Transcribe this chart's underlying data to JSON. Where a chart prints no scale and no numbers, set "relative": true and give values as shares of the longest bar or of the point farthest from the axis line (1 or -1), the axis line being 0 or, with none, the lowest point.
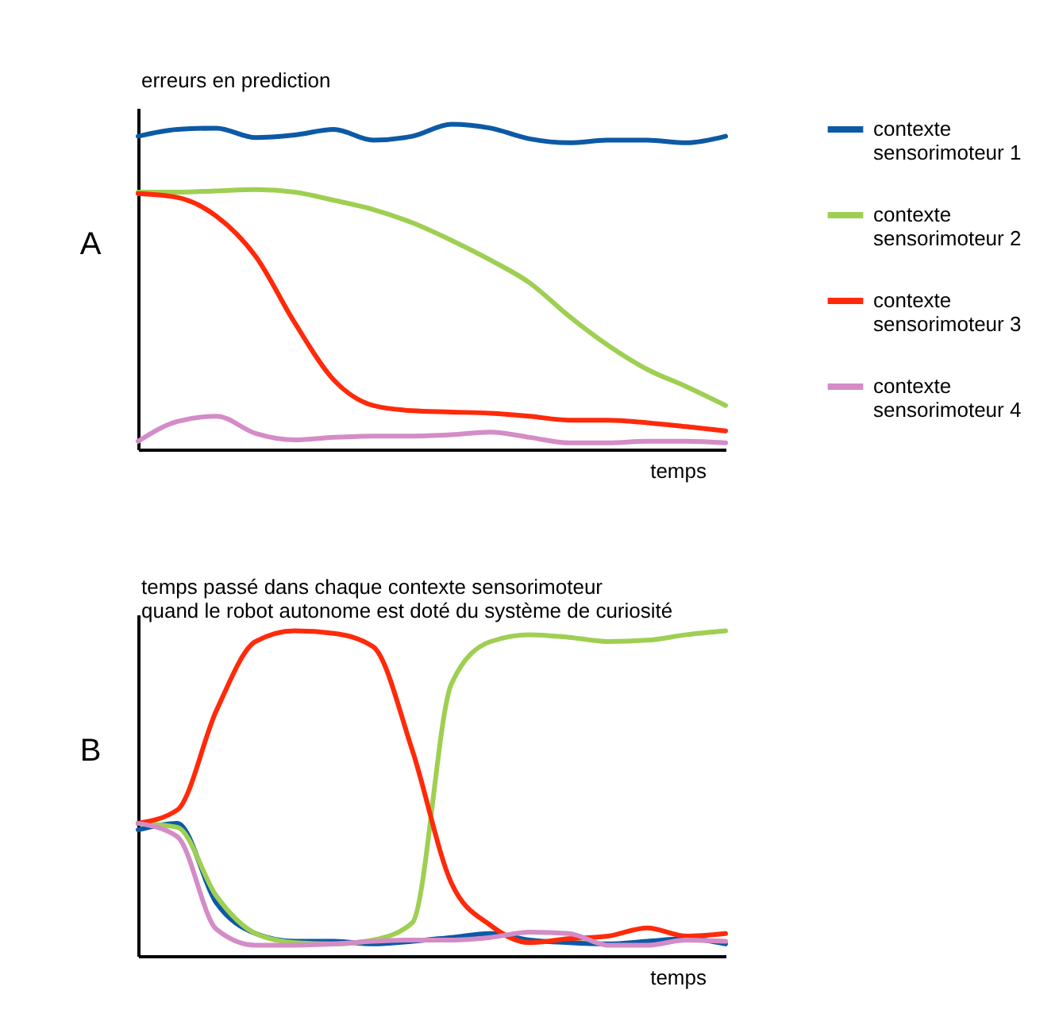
{
  "chart_data": [
    {
      "type": "line",
      "relative": true,
      "ylabel": "erreurs en prediction",
      "xlabel": "temps",
      "annotations": [
        "A"
      ],
      "legend": "right",
      "grid": false,
      "tick_labels": false,
      "categories": [
        null,
        null,
        null,
        null,
        null,
        null,
        null,
        null,
        null,
        null,
        null,
        null,
        null,
        null,
        null,
        null
      ],
      "series": [
        {
          "name": "contexte sensorimoteur 1",
          "color": "#0c5aa6",
          "values": [
            0.963,
            0.984,
            0.988,
            0.959,
            0.967,
            0.984,
            0.951,
            0.963,
            1.0,
            0.988,
            0.955,
            0.943,
            0.951,
            0.951,
            0.943,
            0.963
          ]
        },
        {
          "name": "contexte sensorimoteur 2",
          "color": "#9fcf52",
          "values": [
            0.791,
            0.791,
            0.795,
            0.799,
            0.791,
            0.766,
            0.738,
            0.697,
            0.643,
            0.582,
            0.512,
            0.41,
            0.32,
            0.246,
            0.193,
            0.135
          ]
        },
        {
          "name": "contexte sensorimoteur 3",
          "color": "#ff2a0a",
          "values": [
            0.787,
            0.775,
            0.717,
            0.594,
            0.389,
            0.213,
            0.135,
            0.119,
            0.115,
            0.111,
            0.102,
            0.09,
            0.09,
            0.082,
            0.07,
            0.057
          ]
        },
        {
          "name": "contexte sensorimoteur 4",
          "color": "#d48cc6",
          "values": [
            0.025,
            0.086,
            0.102,
            0.049,
            0.029,
            0.037,
            0.041,
            0.041,
            0.045,
            0.053,
            0.037,
            0.02,
            0.02,
            0.025,
            0.025,
            0.02
          ]
        }
      ]
    },
    {
      "type": "line",
      "relative": true,
      "ylabel": "temps passé dans chaque contexte sensorimoteur\nquand le robot autonome est doté du système de curiosité",
      "xlabel": "temps",
      "annotations": [
        "B"
      ],
      "legend": "right",
      "grid": false,
      "tick_labels": false,
      "categories": [
        null,
        null,
        null,
        null,
        null,
        null,
        null,
        null,
        null,
        null,
        null,
        null,
        null,
        null,
        null,
        null
      ],
      "series": [
        {
          "name": "contexte sensorimoteur 1",
          "color": "#0c5aa6",
          "values": [
            0.388,
            0.408,
            0.163,
            0.069,
            0.045,
            0.045,
            0.037,
            0.045,
            0.057,
            0.069,
            0.049,
            0.041,
            0.037,
            0.045,
            0.053,
            0.037
          ]
        },
        {
          "name": "contexte sensorimoteur 2",
          "color": "#9fcf52",
          "values": [
            0.408,
            0.396,
            0.184,
            0.069,
            0.041,
            0.037,
            0.049,
            0.102,
            0.837,
            0.967,
            0.988,
            0.98,
            0.967,
            0.971,
            0.988,
            1.0
          ]
        },
        {
          "name": "contexte sensorimoteur 3",
          "color": "#ff2a0a",
          "values": [
            0.408,
            0.449,
            0.755,
            0.967,
            1.0,
            0.992,
            0.951,
            0.633,
            0.224,
            0.094,
            0.041,
            0.053,
            0.061,
            0.086,
            0.061,
            0.069
          ]
        },
        {
          "name": "contexte sensorimoteur 4",
          "color": "#d48cc6",
          "values": [
            0.408,
            0.367,
            0.082,
            0.033,
            0.033,
            0.037,
            0.045,
            0.049,
            0.049,
            0.057,
            0.073,
            0.069,
            0.033,
            0.033,
            0.049,
            0.045
          ]
        }
      ]
    }
  ]
}
